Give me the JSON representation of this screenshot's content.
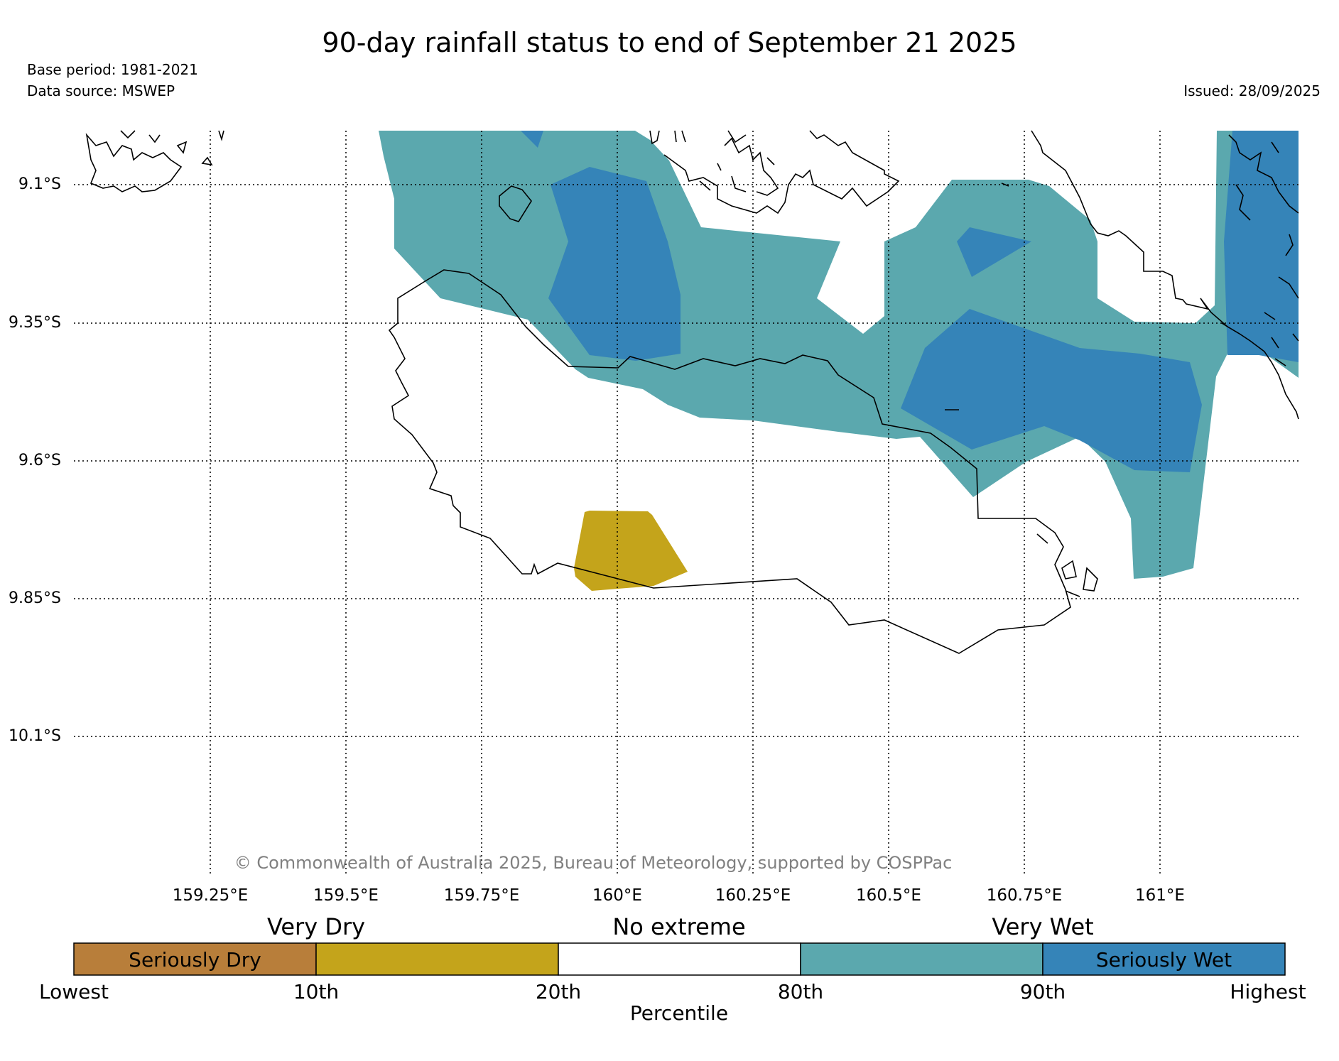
{
  "header": {
    "title": "90-day rainfall status to end of September 21 2025",
    "base_period": "Base period: 1981-2021",
    "data_source": "Data source: MSWEP",
    "issued": "Issued: 28/09/2025"
  },
  "map": {
    "lat_labels": [
      "9.1°S",
      "9.35°S",
      "9.6°S",
      "9.85°S",
      "10.1°S"
    ],
    "lon_labels": [
      "159.25°E",
      "159.5°E",
      "159.75°E",
      "160°E",
      "160.25°E",
      "160.5°E",
      "160.75°E",
      "161°E"
    ],
    "copyright": "© Commonwealth of Australia 2025, Bureau of Meteorology, supported by COSPPac",
    "colors": {
      "very_wet": "#5ba8ae",
      "seriously_wet": "#3584b8",
      "very_dry": "#c4a41b",
      "seriously_dry": "#b87e3a",
      "coast": "#000000",
      "no_extreme": "#ffffff"
    }
  },
  "legend": {
    "categories": {
      "very_dry": "Very Dry",
      "no_extreme": "No extreme",
      "very_wet": "Very Wet"
    },
    "segments": {
      "seriously_dry": "Seriously Dry",
      "seriously_wet": "Seriously Wet"
    },
    "ticks": [
      "Lowest",
      "10th",
      "20th",
      "80th",
      "90th",
      "Highest"
    ],
    "axis_title": "Percentile"
  }
}
